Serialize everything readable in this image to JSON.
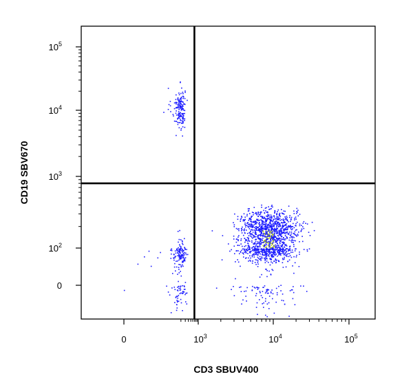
{
  "chart_data": {
    "type": "scatter",
    "subtype": "flow-cytometry-dot-plot",
    "xlabel": "CD3 SBUV400",
    "ylabel": "CD19 SBV670",
    "x_scale": "biexponential",
    "y_scale": "biexponential",
    "xlim": [
      -700,
      200000
    ],
    "ylim": [
      -120,
      200000
    ],
    "x_ticks": [
      {
        "value": 0,
        "base": "0",
        "exp": ""
      },
      {
        "value": 1000,
        "base": "10",
        "exp": "3"
      },
      {
        "value": 10000,
        "base": "10",
        "exp": "4"
      },
      {
        "value": 100000,
        "base": "10",
        "exp": "5"
      }
    ],
    "y_ticks": [
      {
        "value": 0,
        "base": "0",
        "exp": ""
      },
      {
        "value": 100,
        "base": "10",
        "exp": "2"
      },
      {
        "value": 1000,
        "base": "10",
        "exp": "3"
      },
      {
        "value": 10000,
        "base": "10",
        "exp": "4"
      },
      {
        "value": 100000,
        "base": "10",
        "exp": "5"
      }
    ],
    "quadrant_gate": {
      "x": 700,
      "y": 800
    },
    "point_color": "#1a1aff",
    "density_color": "#c8e000",
    "populations": [
      {
        "name": "",
        "n": 170,
        "x_center": 180,
        "x_spread": 50,
        "y_center": 11000,
        "y_spread": 0.16,
        "y_mode": "log"
      },
      {
        "name": "",
        "n": 200,
        "x_center": 180,
        "x_spread": 70,
        "y_center": 30,
        "y_spread": 55,
        "y_mode": "lin"
      },
      {
        "name": "",
        "n": 1550,
        "x_center": 8500,
        "x_spread": 0.2,
        "x_mode": "log",
        "y_center": 140,
        "y_spread": 90,
        "y_mode": "lin"
      }
    ],
    "grid": false,
    "legend": "none"
  }
}
